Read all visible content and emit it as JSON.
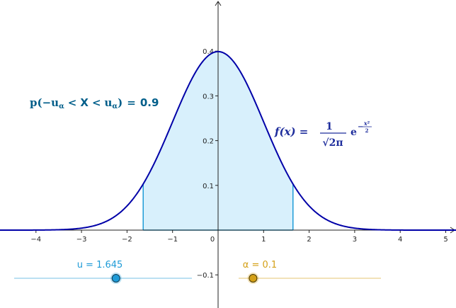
{
  "chart_data": {
    "type": "area",
    "function": {
      "name": "f",
      "formula": "(1/sqrt(2*pi))*exp(-x^2/2)",
      "label": {
        "lhs": "f(x) =",
        "numerator": "1",
        "denominator": "√2π",
        "base": "e",
        "exponent_sign": "−",
        "exponent_num": "x²",
        "exponent_den": "2"
      }
    },
    "shaded_interval": [
      -1.645,
      1.645
    ],
    "probability_label": {
      "prefix": "p(",
      "neg": "−",
      "u": "u",
      "sub": "α",
      "lt": "<",
      "X": "X",
      "close": ")",
      "eq": "=",
      "value": "0.9"
    },
    "x_ticks": [
      "−4",
      "−3",
      "−2",
      "−1",
      "0",
      "1",
      "2",
      "3",
      "4",
      "5"
    ],
    "y_ticks": [
      "0.1",
      "0.2",
      "0.3",
      "0.4",
      "−0.1"
    ],
    "xlim": [
      -4.75,
      5.15
    ],
    "ylim": [
      -0.16,
      0.5
    ]
  },
  "sliders": {
    "u": {
      "label": "u = 1.645",
      "value": 1.645,
      "min": -5,
      "max": 5
    },
    "alpha": {
      "label": "α = 0.1",
      "value": 0.1,
      "min": 0,
      "max": 0.25
    }
  },
  "colors": {
    "curve": "#0000a8",
    "fill": "#d8f0fc",
    "edge": "#1e9bd7",
    "prob_text": "#005e8a",
    "func_text": "#1e2d9c",
    "slider_u": "#1e9bd7",
    "slider_alpha": "#d4a017",
    "axis": "#222222"
  }
}
